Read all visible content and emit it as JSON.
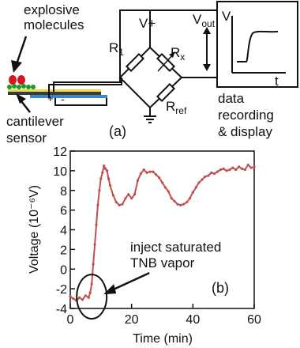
{
  "schematic": {
    "molecules_label_line1": "explosive",
    "molecules_label_line2": "molecules",
    "sensor_label_line1": "cantilever",
    "sensor_label_line2": "sensor",
    "plus_sign": "+",
    "minus_sign": "-",
    "vplus_label": "V+",
    "vout_label": "V",
    "vout_sub": "out",
    "r1_label": "R",
    "r1_sub": "1",
    "rx_label": "R",
    "rx_sub": "x",
    "rref_label": "R",
    "rref_sub": "ref",
    "display_v_label": "V",
    "display_t_label": "t",
    "recorder_line1": "data",
    "recorder_line2": "recording",
    "recorder_line3": "& display",
    "panel_label": "(a)",
    "colors": {
      "molecule_red": "#d8141c",
      "molecule_green": "#1a9a2a",
      "cantilever_yellow": "#e8d84a",
      "cantilever_blue": "#3a86c8"
    }
  },
  "chart_data": {
    "type": "line",
    "panel_label": "(b)",
    "xlabel": "Time (min)",
    "ylabel": "Voltage (10⁻⁶V)",
    "xlim": [
      0,
      60
    ],
    "ylim": [
      -4,
      12
    ],
    "xticks": [
      0,
      20,
      40,
      60
    ],
    "yticks": [
      -4,
      -2,
      0,
      2,
      4,
      6,
      8,
      10,
      12
    ],
    "line_color": "#c0504d",
    "annotation_line1": "inject saturated",
    "annotation_line2": "TNB vapor",
    "annotation_point": [
      7,
      -2.8
    ],
    "series": [
      {
        "x": [
          0,
          1,
          2,
          3,
          4,
          5,
          6,
          6.5,
          7,
          7.5,
          8,
          8.5,
          9,
          9.5,
          10,
          10.5,
          11,
          11.5,
          12,
          12.5,
          13,
          14,
          15,
          16,
          17,
          18,
          19,
          20,
          21,
          22,
          23,
          24,
          25,
          26,
          27,
          28,
          29,
          30,
          31,
          32,
          33,
          34,
          35,
          36,
          37,
          38,
          39,
          40,
          41,
          42,
          43,
          44,
          45,
          46,
          47,
          48,
          49,
          50,
          51,
          52,
          53,
          54,
          55,
          56,
          57,
          58,
          59,
          60
        ],
        "values": [
          -2.8,
          -3.0,
          -3.2,
          -2.9,
          -3.1,
          -2.7,
          -2.9,
          -2.4,
          -1.5,
          0.5,
          2.5,
          4.5,
          6.5,
          8.0,
          9.2,
          9.8,
          10.5,
          10.2,
          10.0,
          9.2,
          8.5,
          7.5,
          6.8,
          6.5,
          6.6,
          7.2,
          7.6,
          7.2,
          7.6,
          9.0,
          9.7,
          10.1,
          9.8,
          9.9,
          9.9,
          9.6,
          9.3,
          8.8,
          8.3,
          7.9,
          7.2,
          6.9,
          6.6,
          6.5,
          6.6,
          6.8,
          7.2,
          7.8,
          8.3,
          8.8,
          9.1,
          9.4,
          9.5,
          9.8,
          9.7,
          9.9,
          10.1,
          10.2,
          10.0,
          10.1,
          10.3,
          10.1,
          10.4,
          10.2,
          10.1,
          10.6,
          10.3,
          10.4
        ]
      }
    ]
  }
}
